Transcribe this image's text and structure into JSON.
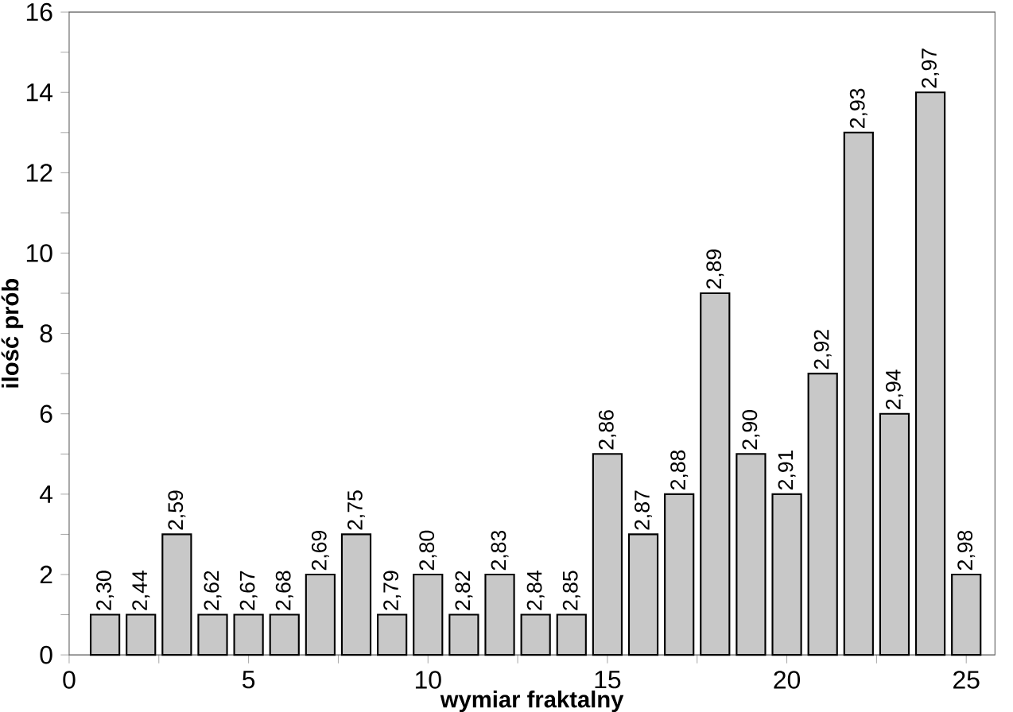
{
  "chart_data": {
    "type": "bar",
    "xlabel": "wymiar fraktalny",
    "ylabel": "ilość prób",
    "x": [
      1,
      2,
      3,
      4,
      5,
      6,
      7,
      8,
      9,
      10,
      11,
      12,
      13,
      14,
      15,
      16,
      17,
      18,
      19,
      20,
      21,
      22,
      23,
      24,
      25
    ],
    "values": [
      1,
      1,
      3,
      1,
      1,
      1,
      2,
      3,
      1,
      2,
      1,
      2,
      1,
      1,
      5,
      3,
      4,
      9,
      5,
      4,
      7,
      13,
      6,
      14,
      2
    ],
    "annotations": [
      {
        "text": "2,30",
        "x": 1,
        "y": 1
      },
      {
        "text": "2,44",
        "x": 2,
        "y": 1
      },
      {
        "text": "2,59",
        "x": 3,
        "y": 3
      },
      {
        "text": "2,62",
        "x": 4,
        "y": 1
      },
      {
        "text": "2,67",
        "x": 5,
        "y": 1
      },
      {
        "text": "2,68",
        "x": 6,
        "y": 1
      },
      {
        "text": "2,69",
        "x": 7,
        "y": 2
      },
      {
        "text": "2,75",
        "x": 8,
        "y": 3
      },
      {
        "text": "2,79",
        "x": 9,
        "y": 1
      },
      {
        "text": "2,80",
        "x": 10,
        "y": 2
      },
      {
        "text": "2,82",
        "x": 11,
        "y": 1
      },
      {
        "text": "2,83",
        "x": 12,
        "y": 2
      },
      {
        "text": "2,84",
        "x": 13,
        "y": 1
      },
      {
        "text": "2,85",
        "x": 14,
        "y": 1
      },
      {
        "text": "2,86",
        "x": 15,
        "y": 5
      },
      {
        "text": "2,87",
        "x": 16,
        "y": 3
      },
      {
        "text": "2,88",
        "x": 17,
        "y": 4
      },
      {
        "text": "2,89",
        "x": 18,
        "y": 9
      },
      {
        "text": "2,90",
        "x": 19,
        "y": 5
      },
      {
        "text": "2,91",
        "x": 20,
        "y": 4
      },
      {
        "text": "2,92",
        "x": 21,
        "y": 7
      },
      {
        "text": "2,93",
        "x": 22,
        "y": 13
      },
      {
        "text": "2,94",
        "x": 23,
        "y": 6
      },
      {
        "text": "2,97",
        "x": 24,
        "y": 14
      },
      {
        "text": "2,98",
        "x": 25,
        "y": 2
      }
    ],
    "color": "#c8c8c8",
    "xlim": [
      0,
      25.8
    ],
    "ylim": [
      0,
      16
    ],
    "xticks": [
      0,
      {
        "value": 2.5,
        "label": null
      },
      5,
      {
        "value": 7.5,
        "label": null
      },
      10,
      {
        "value": 12.5,
        "label": null
      },
      15,
      {
        "value": 17.5,
        "label": null
      },
      20,
      {
        "value": 22.5,
        "label": null
      },
      25
    ],
    "yticks": [
      0,
      {
        "value": 1,
        "label": null
      },
      2,
      {
        "value": 3,
        "label": null
      },
      4,
      {
        "value": 5,
        "label": null
      },
      6,
      {
        "value": 7,
        "label": null
      },
      8,
      {
        "value": 9,
        "label": null
      },
      10,
      {
        "value": 11,
        "label": null
      },
      12,
      {
        "value": 13,
        "label": null
      },
      14,
      {
        "value": 15,
        "label": null
      },
      16
    ],
    "grid": false
  }
}
